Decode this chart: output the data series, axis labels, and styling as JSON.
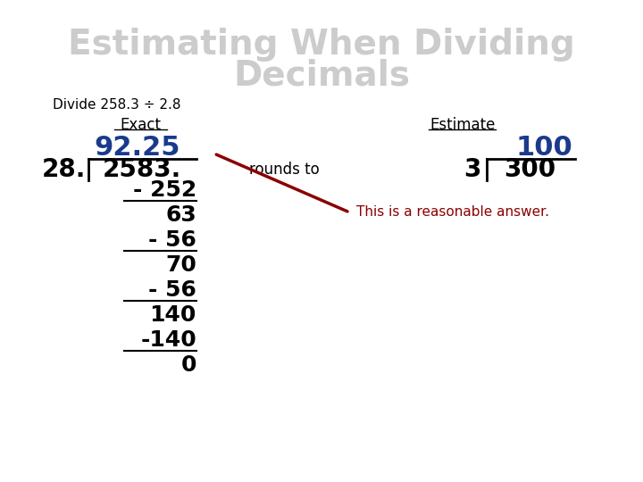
{
  "title_line1": "Estimating When Dividing",
  "title_line2": "Decimals",
  "title_color": "#cccccc",
  "subtitle": "Divide 258.3 ÷ 2.8",
  "subtitle_color": "#000000",
  "exact_label": "Exact",
  "estimate_label": "Estimate",
  "label_color": "#000000",
  "bg_color": "#ffffff",
  "quotient": "92.25",
  "quotient_color": "#1a3a8c",
  "divisor": "28.",
  "dividend": "2583.",
  "long_div_color": "#000000",
  "steps": [
    {
      "text": "- 252",
      "underline": true
    },
    {
      "text": "63",
      "underline": false
    },
    {
      "text": "- 56",
      "underline": true
    },
    {
      "text": "70",
      "underline": false
    },
    {
      "text": "- 56",
      "underline": true
    },
    {
      "text": "140",
      "underline": false
    },
    {
      "text": "-140",
      "underline": true
    },
    {
      "text": "0",
      "underline": false
    }
  ],
  "rounds_to": "rounds to",
  "est_quotient": "100",
  "est_quotient_color": "#1a3a8c",
  "est_divisor": "3",
  "est_dividend": "300",
  "est_div_color": "#000000",
  "reasonable_text": "This is a reasonable answer.",
  "reasonable_color": "#8b0000",
  "arrow_color": "#8b0000"
}
